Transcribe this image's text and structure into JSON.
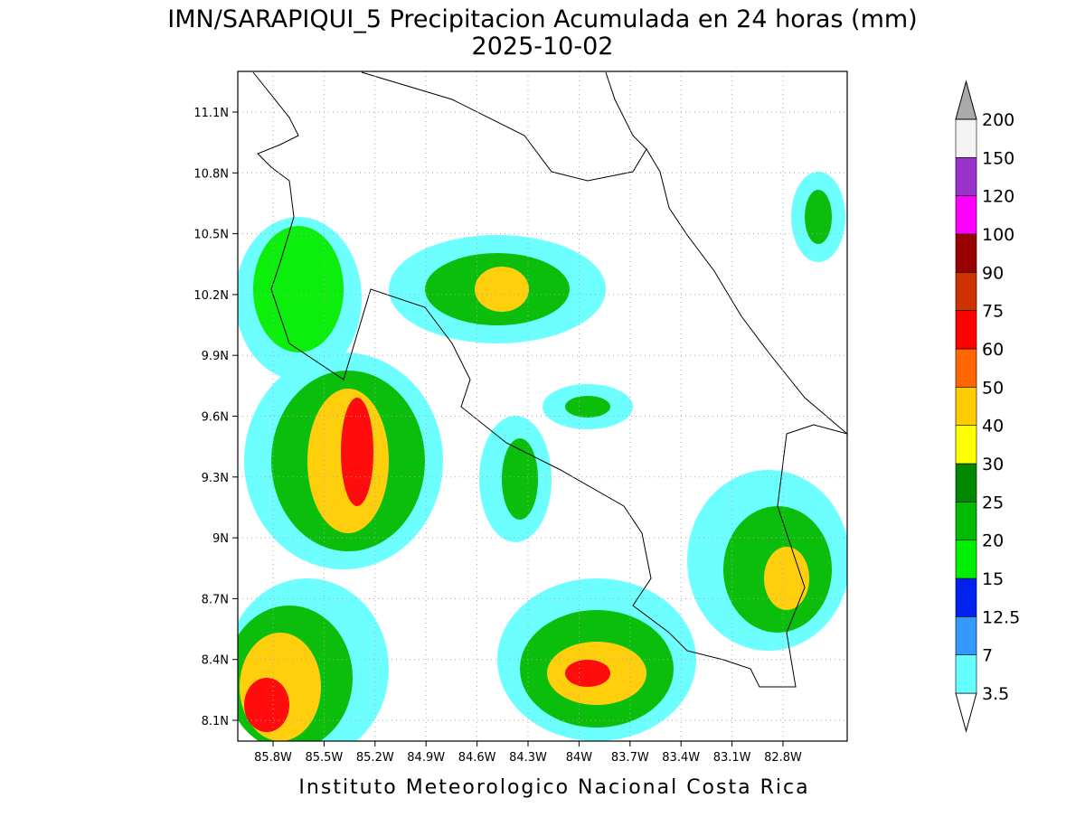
{
  "title": "IMN/SARAPIQUI_5 Precipitacion Acumulada en 24 horas (mm)",
  "subtitle": "2025-10-02",
  "lon_ticks": [
    "85.8W",
    "85.5W",
    "85.2W",
    "84.9W",
    "84.6W",
    "84.3W",
    "84W",
    "83.7W",
    "83.4W",
    "83.1W",
    "82.8W"
  ],
  "lat_ticks": [
    "11.1N",
    "10.8N",
    "10.5N",
    "10.2N",
    "9.9N",
    "9.6N",
    "9.3N",
    "9N",
    "8.7N",
    "8.4N",
    "8.1N"
  ],
  "colorbar": {
    "levels": [
      3.5,
      7,
      12.5,
      15,
      20,
      25,
      30,
      40,
      50,
      60,
      75,
      90,
      100,
      120,
      150,
      200
    ],
    "colors": [
      "#ffffff",
      "#66ffff",
      "#3399ff",
      "#0022ee",
      "#00ee00",
      "#00bb00",
      "#008800",
      "#ffff00",
      "#ffcc00",
      "#ff6600",
      "#ff0000",
      "#cc3300",
      "#990000",
      "#ff00ff",
      "#9933cc",
      "#f4f4f4",
      "#aaaaaa"
    ]
  },
  "footer": "Instituto Meteorologico Nacional Costa Rica"
}
